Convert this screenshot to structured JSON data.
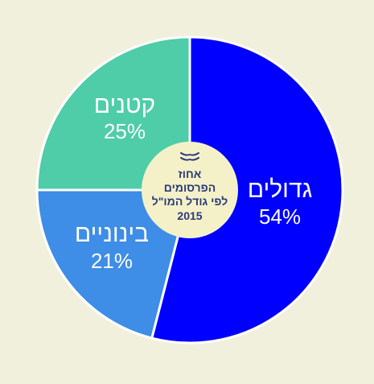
{
  "chart_data": {
    "type": "pie",
    "title_lines": [
      "אחוז",
      "הפרסומים",
      "לפי גודל המו\"ל",
      "2015"
    ],
    "slices": [
      {
        "label": "גדולים",
        "value": 54,
        "value_label": "54%",
        "color": "#0000ff"
      },
      {
        "label": "בינוניים",
        "value": 21,
        "value_label": "21%",
        "color": "#3e8de6"
      },
      {
        "label": "קטנים",
        "value": 25,
        "value_label": "25%",
        "color": "#4ecda8"
      }
    ],
    "center_color": "#f4f1c8",
    "center_text_color": "#2a3a7a",
    "center_icon": "book-icon"
  }
}
